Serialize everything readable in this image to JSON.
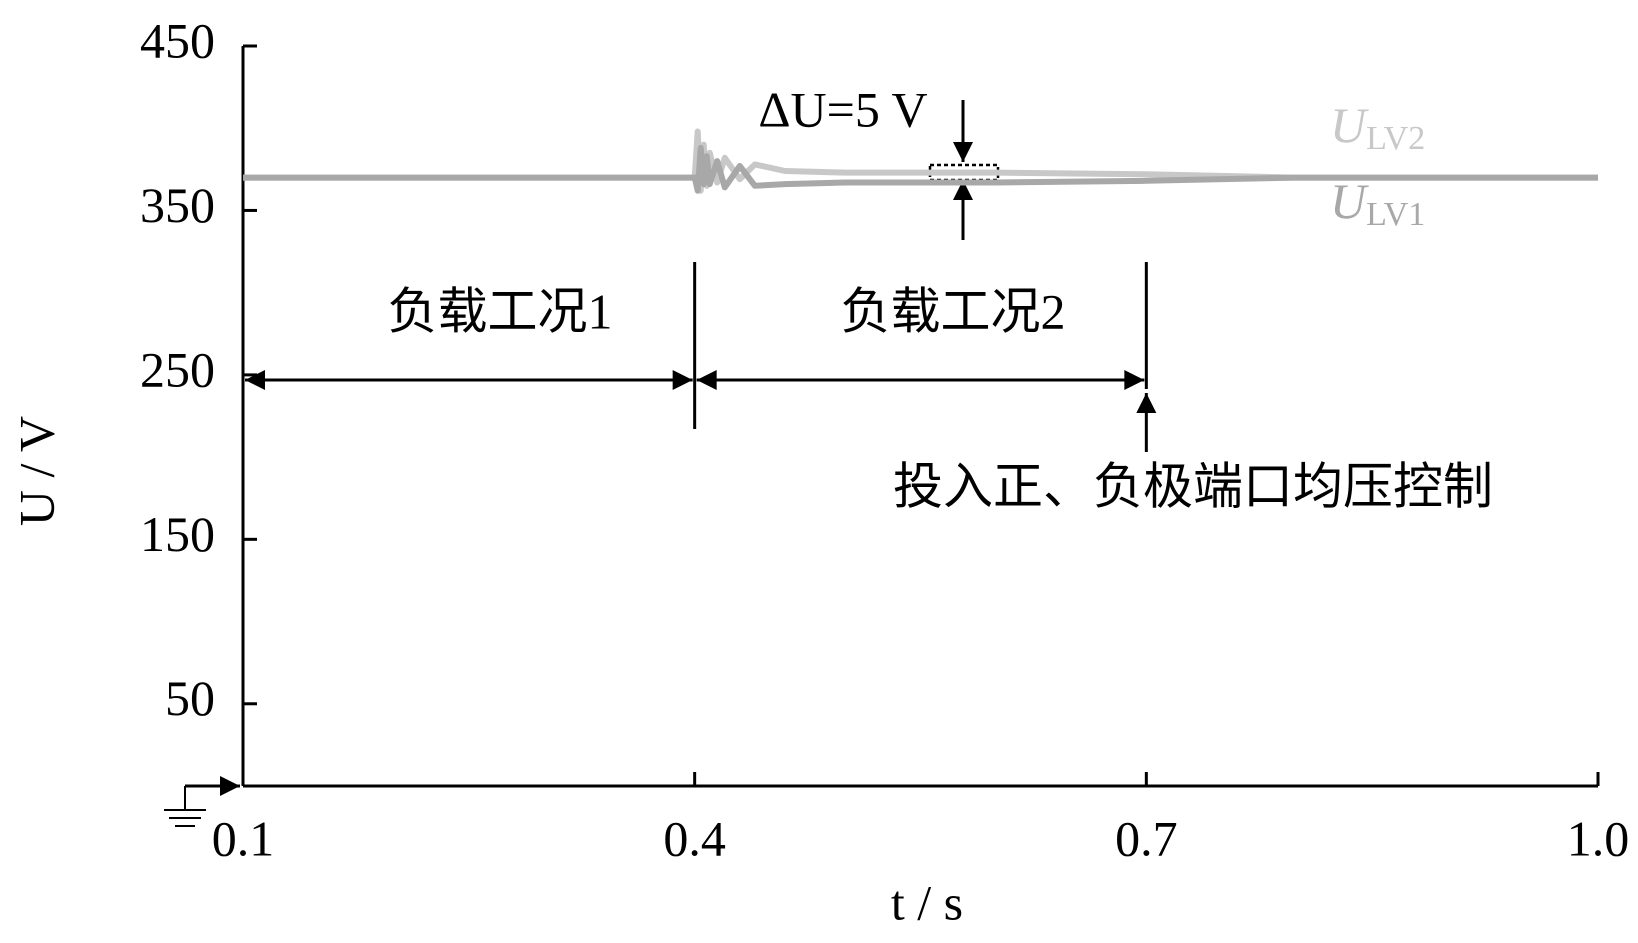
{
  "chart_data": {
    "type": "line",
    "y_label": "U / V",
    "x_label": "t / s",
    "annotations": [
      "ΔU=5 V",
      "负载工况1",
      "负载工况2",
      "投入正、负极端口均压控制"
    ],
    "x": [
      0.1,
      0.2,
      0.3,
      0.4,
      0.402,
      0.404,
      0.406,
      0.408,
      0.41,
      0.415,
      0.42,
      0.43,
      0.44,
      0.46,
      0.5,
      0.6,
      0.7,
      0.8,
      0.9,
      1.0
    ],
    "series": [
      {
        "name": "ULV2",
        "color": "#c8c8c8",
        "values": [
          370,
          370,
          370,
          370,
          398,
          362,
          390,
          365,
          385,
          367,
          382,
          369,
          378,
          374,
          373,
          373,
          372,
          370,
          370,
          370
        ]
      },
      {
        "name": "ULV1",
        "color": "#a8a8a8",
        "values": [
          370,
          370,
          370,
          370,
          362,
          388,
          366,
          383,
          366,
          380,
          364,
          377,
          365,
          366,
          367,
          367,
          368,
          370,
          370,
          370
        ]
      }
    ],
    "xlim": [
      0.1,
      1.0
    ],
    "xticks": [
      0.1,
      0.4,
      0.7,
      {
        "value": 1,
        "label": "1.0"
      }
    ],
    "ylim": [
      0,
      450
    ],
    "yticks": [
      50,
      150,
      250,
      350,
      450
    ],
    "grid": false
  }
}
